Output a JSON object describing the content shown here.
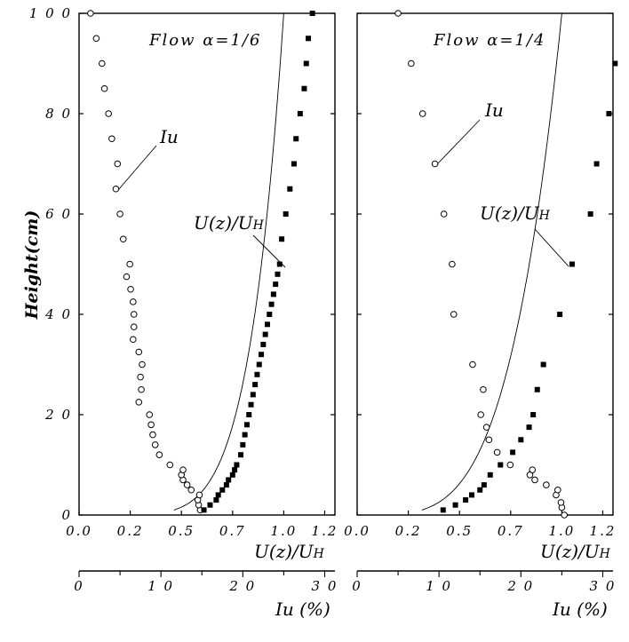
{
  "chart_data": [
    {
      "type": "scatter",
      "title": "Flow α=1/6",
      "ylabel": "Height(cm)",
      "xlabel": "U(z)/U",
      "xlabel_sub": "H",
      "xlabel2": "Iu (%)",
      "ylim": [
        0,
        100
      ],
      "xlim": [
        0,
        1.25
      ],
      "x2lim": [
        0,
        31.25
      ],
      "y_ticks": [
        "0",
        "2 0",
        "4 0",
        "6 0",
        "8 0",
        "1 0 0"
      ],
      "x_ticks": [
        "0.0",
        "0.2",
        "0.5",
        "0.7",
        "1.0",
        "1.2"
      ],
      "x2_ticks": [
        "0",
        "1 0",
        "2 0",
        "3 0"
      ],
      "annotation_iu": "Iu",
      "annotation_u": "U(z)/U",
      "annotation_u_sub": "H",
      "power_law_alpha": 0.1667,
      "series": [
        {
          "marker": "filled-square",
          "axis": "U(z)/UH",
          "points": [
            [
              0.61,
              1
            ],
            [
              0.64,
              2
            ],
            [
              0.67,
              3
            ],
            [
              0.68,
              4
            ],
            [
              0.7,
              5
            ],
            [
              0.72,
              6
            ],
            [
              0.73,
              7
            ],
            [
              0.75,
              8
            ],
            [
              0.76,
              9
            ],
            [
              0.77,
              10
            ],
            [
              0.79,
              12
            ],
            [
              0.8,
              14
            ],
            [
              0.81,
              16
            ],
            [
              0.82,
              18
            ],
            [
              0.83,
              20
            ],
            [
              0.84,
              22
            ],
            [
              0.85,
              24
            ],
            [
              0.86,
              26
            ],
            [
              0.87,
              28
            ],
            [
              0.88,
              30
            ],
            [
              0.89,
              32
            ],
            [
              0.9,
              34
            ],
            [
              0.91,
              36
            ],
            [
              0.92,
              38
            ],
            [
              0.93,
              40
            ],
            [
              0.94,
              42
            ],
            [
              0.95,
              44
            ],
            [
              0.96,
              46
            ],
            [
              0.97,
              48
            ],
            [
              0.98,
              50
            ],
            [
              0.99,
              55
            ],
            [
              1.01,
              60
            ],
            [
              1.03,
              65
            ],
            [
              1.05,
              70
            ],
            [
              1.06,
              75
            ],
            [
              1.08,
              80
            ],
            [
              1.1,
              85
            ],
            [
              1.11,
              90
            ],
            [
              1.12,
              95
            ],
            [
              1.14,
              100
            ]
          ]
        },
        {
          "marker": "open-circle",
          "axis": "Iu (%)",
          "points": [
            [
              14.8,
              1
            ],
            [
              14.6,
              2
            ],
            [
              14.5,
              3
            ],
            [
              14.7,
              4
            ],
            [
              13.7,
              5
            ],
            [
              13.2,
              6
            ],
            [
              12.7,
              7
            ],
            [
              12.5,
              8
            ],
            [
              12.7,
              9
            ],
            [
              11.1,
              10
            ],
            [
              9.8,
              12
            ],
            [
              9.3,
              14
            ],
            [
              9.0,
              16
            ],
            [
              8.8,
              18
            ],
            [
              8.6,
              20
            ],
            [
              7.3,
              22.5
            ],
            [
              7.6,
              25
            ],
            [
              7.5,
              27.5
            ],
            [
              7.7,
              30
            ],
            [
              7.3,
              32.5
            ],
            [
              6.6,
              35
            ],
            [
              6.7,
              37.5
            ],
            [
              6.7,
              40
            ],
            [
              6.6,
              42.5
            ],
            [
              6.3,
              45
            ],
            [
              5.8,
              47.5
            ],
            [
              6.2,
              50
            ],
            [
              5.4,
              55
            ],
            [
              5.0,
              60
            ],
            [
              4.5,
              65
            ],
            [
              4.7,
              70
            ],
            [
              4.0,
              75
            ],
            [
              3.6,
              80
            ],
            [
              3.1,
              85
            ],
            [
              2.8,
              90
            ],
            [
              2.1,
              95
            ],
            [
              1.4,
              100
            ]
          ]
        }
      ]
    },
    {
      "type": "scatter",
      "title": "Flow α=1/4",
      "xlabel": "U(z)/U",
      "xlabel_sub": "H",
      "xlabel2": "Iu (%)",
      "ylim": [
        0,
        100
      ],
      "xlim": [
        0,
        1.25
      ],
      "x2lim": [
        0,
        31.25
      ],
      "x_ticks": [
        "0.0",
        "0.2",
        "0.5",
        "0.7",
        "1.0",
        "1.2"
      ],
      "x2_ticks": [
        "0",
        "1 0",
        "2 0",
        "3 0"
      ],
      "annotation_iu": "Iu",
      "annotation_u": "U(z)/U",
      "annotation_u_sub": "H",
      "power_law_alpha": 0.25,
      "series": [
        {
          "marker": "filled-square",
          "axis": "U(z)/UH",
          "points": [
            [
              0.42,
              1
            ],
            [
              0.48,
              2
            ],
            [
              0.53,
              3
            ],
            [
              0.56,
              4
            ],
            [
              0.6,
              5
            ],
            [
              0.62,
              6
            ],
            [
              0.65,
              8
            ],
            [
              0.7,
              10
            ],
            [
              0.76,
              12.5
            ],
            [
              0.8,
              15
            ],
            [
              0.84,
              17.5
            ],
            [
              0.86,
              20
            ],
            [
              0.88,
              25
            ],
            [
              0.91,
              30
            ],
            [
              0.99,
              40
            ],
            [
              1.05,
              50
            ],
            [
              1.14,
              60
            ],
            [
              1.17,
              70
            ],
            [
              1.23,
              80
            ],
            [
              1.26,
              90
            ]
          ]
        },
        {
          "marker": "open-circle",
          "axis": "Iu (%)",
          "points": [
            [
              25.3,
              0
            ],
            [
              25.0,
              1.5
            ],
            [
              24.9,
              2.5
            ],
            [
              24.3,
              4
            ],
            [
              24.5,
              5
            ],
            [
              23.1,
              6
            ],
            [
              21.7,
              7
            ],
            [
              21.1,
              8
            ],
            [
              21.4,
              9
            ],
            [
              18.7,
              10
            ],
            [
              17.1,
              12.5
            ],
            [
              16.1,
              15
            ],
            [
              15.8,
              17.5
            ],
            [
              15.1,
              20
            ],
            [
              15.4,
              25
            ],
            [
              14.1,
              30
            ],
            [
              11.8,
              40
            ],
            [
              11.6,
              50
            ],
            [
              10.6,
              60
            ],
            [
              9.5,
              70
            ],
            [
              8.0,
              80
            ],
            [
              6.6,
              90
            ],
            [
              5.0,
              100
            ]
          ]
        }
      ]
    }
  ]
}
